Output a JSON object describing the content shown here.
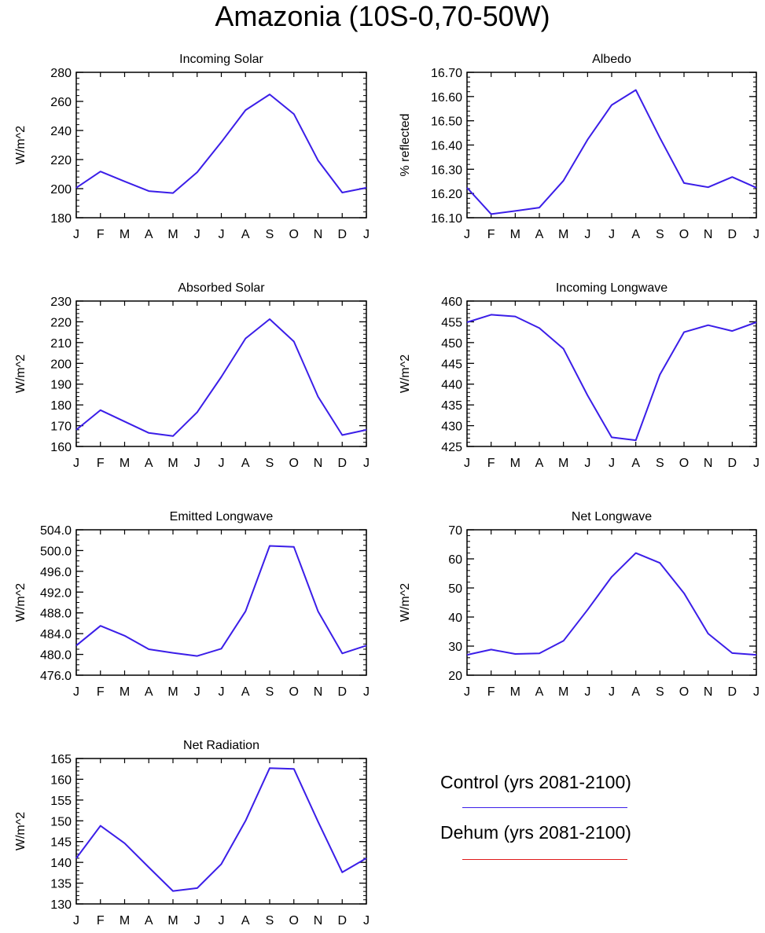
{
  "title": "Amazonia (10S-0,70-50W)",
  "legend": {
    "entries": [
      {
        "label": "Control (yrs 2081-2100)",
        "color": "#3b1ee8"
      },
      {
        "label": "Dehum (yrs 2081-2100)",
        "color": "#e01b1b"
      }
    ]
  },
  "chart_data": [
    {
      "type": "line",
      "title": "Incoming Solar",
      "ylabel": "W/m^2",
      "x": [
        "J",
        "F",
        "M",
        "A",
        "M",
        "J",
        "J",
        "A",
        "S",
        "O",
        "N",
        "D",
        "J"
      ],
      "ylim": [
        180,
        280
      ],
      "yticks": [
        180,
        200,
        220,
        240,
        260,
        280
      ],
      "ytick_labels": [
        "180",
        "200",
        "220",
        "240",
        "260",
        "280"
      ],
      "yminor": 5,
      "series": [
        {
          "color": "#3b1ee8",
          "values": [
            200.6,
            211.8,
            205.0,
            198.3,
            197.0,
            211.3,
            232.0,
            254.0,
            264.8,
            251.3,
            219.4,
            197.3,
            200.6
          ]
        }
      ]
    },
    {
      "type": "line",
      "title": "Albedo",
      "ylabel": "% reflected",
      "x": [
        "J",
        "F",
        "M",
        "A",
        "M",
        "J",
        "J",
        "A",
        "S",
        "O",
        "N",
        "D",
        "J"
      ],
      "ylim": [
        16.1,
        16.7
      ],
      "yticks": [
        16.1,
        16.2,
        16.3,
        16.4,
        16.5,
        16.6,
        16.7
      ],
      "ytick_labels": [
        "16.10",
        "16.20",
        "16.30",
        "16.40",
        "16.50",
        "16.60",
        "16.70"
      ],
      "yminor": 5,
      "series": [
        {
          "color": "#3b1ee8",
          "values": [
            16.224,
            16.115,
            16.128,
            16.142,
            16.253,
            16.422,
            16.565,
            16.627,
            16.43,
            16.243,
            16.226,
            16.268,
            16.224
          ]
        }
      ]
    },
    {
      "type": "line",
      "title": "Absorbed Solar",
      "ylabel": "W/m^2",
      "x": [
        "J",
        "F",
        "M",
        "A",
        "M",
        "J",
        "J",
        "A",
        "S",
        "O",
        "N",
        "D",
        "J"
      ],
      "ylim": [
        160,
        230
      ],
      "yticks": [
        160,
        170,
        180,
        190,
        200,
        210,
        220,
        230
      ],
      "ytick_labels": [
        "160",
        "170",
        "180",
        "190",
        "200",
        "210",
        "220",
        "230"
      ],
      "yminor": 5,
      "series": [
        {
          "color": "#3b1ee8",
          "values": [
            168.0,
            177.5,
            172.0,
            166.5,
            165.0,
            176.5,
            193.5,
            212.0,
            221.3,
            210.5,
            184.0,
            165.5,
            168.0
          ]
        }
      ]
    },
    {
      "type": "line",
      "title": "Incoming Longwave",
      "ylabel": "W/m^2",
      "x": [
        "J",
        "F",
        "M",
        "A",
        "M",
        "J",
        "J",
        "A",
        "S",
        "O",
        "N",
        "D",
        "J"
      ],
      "ylim": [
        425,
        460
      ],
      "yticks": [
        425,
        430,
        435,
        440,
        445,
        450,
        455,
        460
      ],
      "ytick_labels": [
        "425",
        "430",
        "435",
        "440",
        "445",
        "450",
        "455",
        "460"
      ],
      "yminor": 5,
      "series": [
        {
          "color": "#3b1ee8",
          "values": [
            454.9,
            456.7,
            456.3,
            453.5,
            448.5,
            437.3,
            427.2,
            426.5,
            442.3,
            452.5,
            454.2,
            452.8,
            454.9
          ]
        }
      ]
    },
    {
      "type": "line",
      "title": "Emitted Longwave",
      "ylabel": "W/m^2",
      "x": [
        "J",
        "F",
        "M",
        "A",
        "M",
        "J",
        "J",
        "A",
        "S",
        "O",
        "N",
        "D",
        "J"
      ],
      "ylim": [
        476,
        504
      ],
      "yticks": [
        476,
        480,
        484,
        488,
        492,
        496,
        500,
        504
      ],
      "ytick_labels": [
        "476.0",
        "480.0",
        "484.0",
        "488.0",
        "492.0",
        "496.0",
        "500.0",
        "504.0"
      ],
      "yminor": 4,
      "series": [
        {
          "color": "#3b1ee8",
          "values": [
            481.7,
            485.5,
            483.6,
            481.0,
            480.3,
            479.7,
            481.1,
            488.3,
            500.9,
            500.7,
            488.3,
            480.2,
            481.7
          ]
        }
      ]
    },
    {
      "type": "line",
      "title": "Net Longwave",
      "ylabel": "W/m^2",
      "x": [
        "J",
        "F",
        "M",
        "A",
        "M",
        "J",
        "J",
        "A",
        "S",
        "O",
        "N",
        "D",
        "J"
      ],
      "ylim": [
        20,
        70
      ],
      "yticks": [
        20,
        30,
        40,
        50,
        60,
        70
      ],
      "ytick_labels": [
        "20",
        "30",
        "40",
        "50",
        "60",
        "70"
      ],
      "yminor": 5,
      "series": [
        {
          "color": "#3b1ee8",
          "values": [
            27.0,
            28.8,
            27.3,
            27.5,
            31.8,
            42.5,
            53.8,
            62.0,
            58.6,
            48.2,
            34.3,
            27.6,
            27.0
          ]
        }
      ]
    },
    {
      "type": "line",
      "title": "Net Radiation",
      "ylabel": "W/m^2",
      "x": [
        "J",
        "F",
        "M",
        "A",
        "M",
        "J",
        "J",
        "A",
        "S",
        "O",
        "N",
        "D",
        "J"
      ],
      "ylim": [
        130,
        165
      ],
      "yticks": [
        130,
        135,
        140,
        145,
        150,
        155,
        160,
        165
      ],
      "ytick_labels": [
        "130",
        "135",
        "140",
        "145",
        "150",
        "155",
        "160",
        "165"
      ],
      "yminor": 5,
      "series": [
        {
          "color": "#3b1ee8",
          "values": [
            141.0,
            148.8,
            144.6,
            138.8,
            133.1,
            133.8,
            139.6,
            150.0,
            162.7,
            162.5,
            149.8,
            137.6,
            141.0
          ]
        }
      ]
    }
  ]
}
